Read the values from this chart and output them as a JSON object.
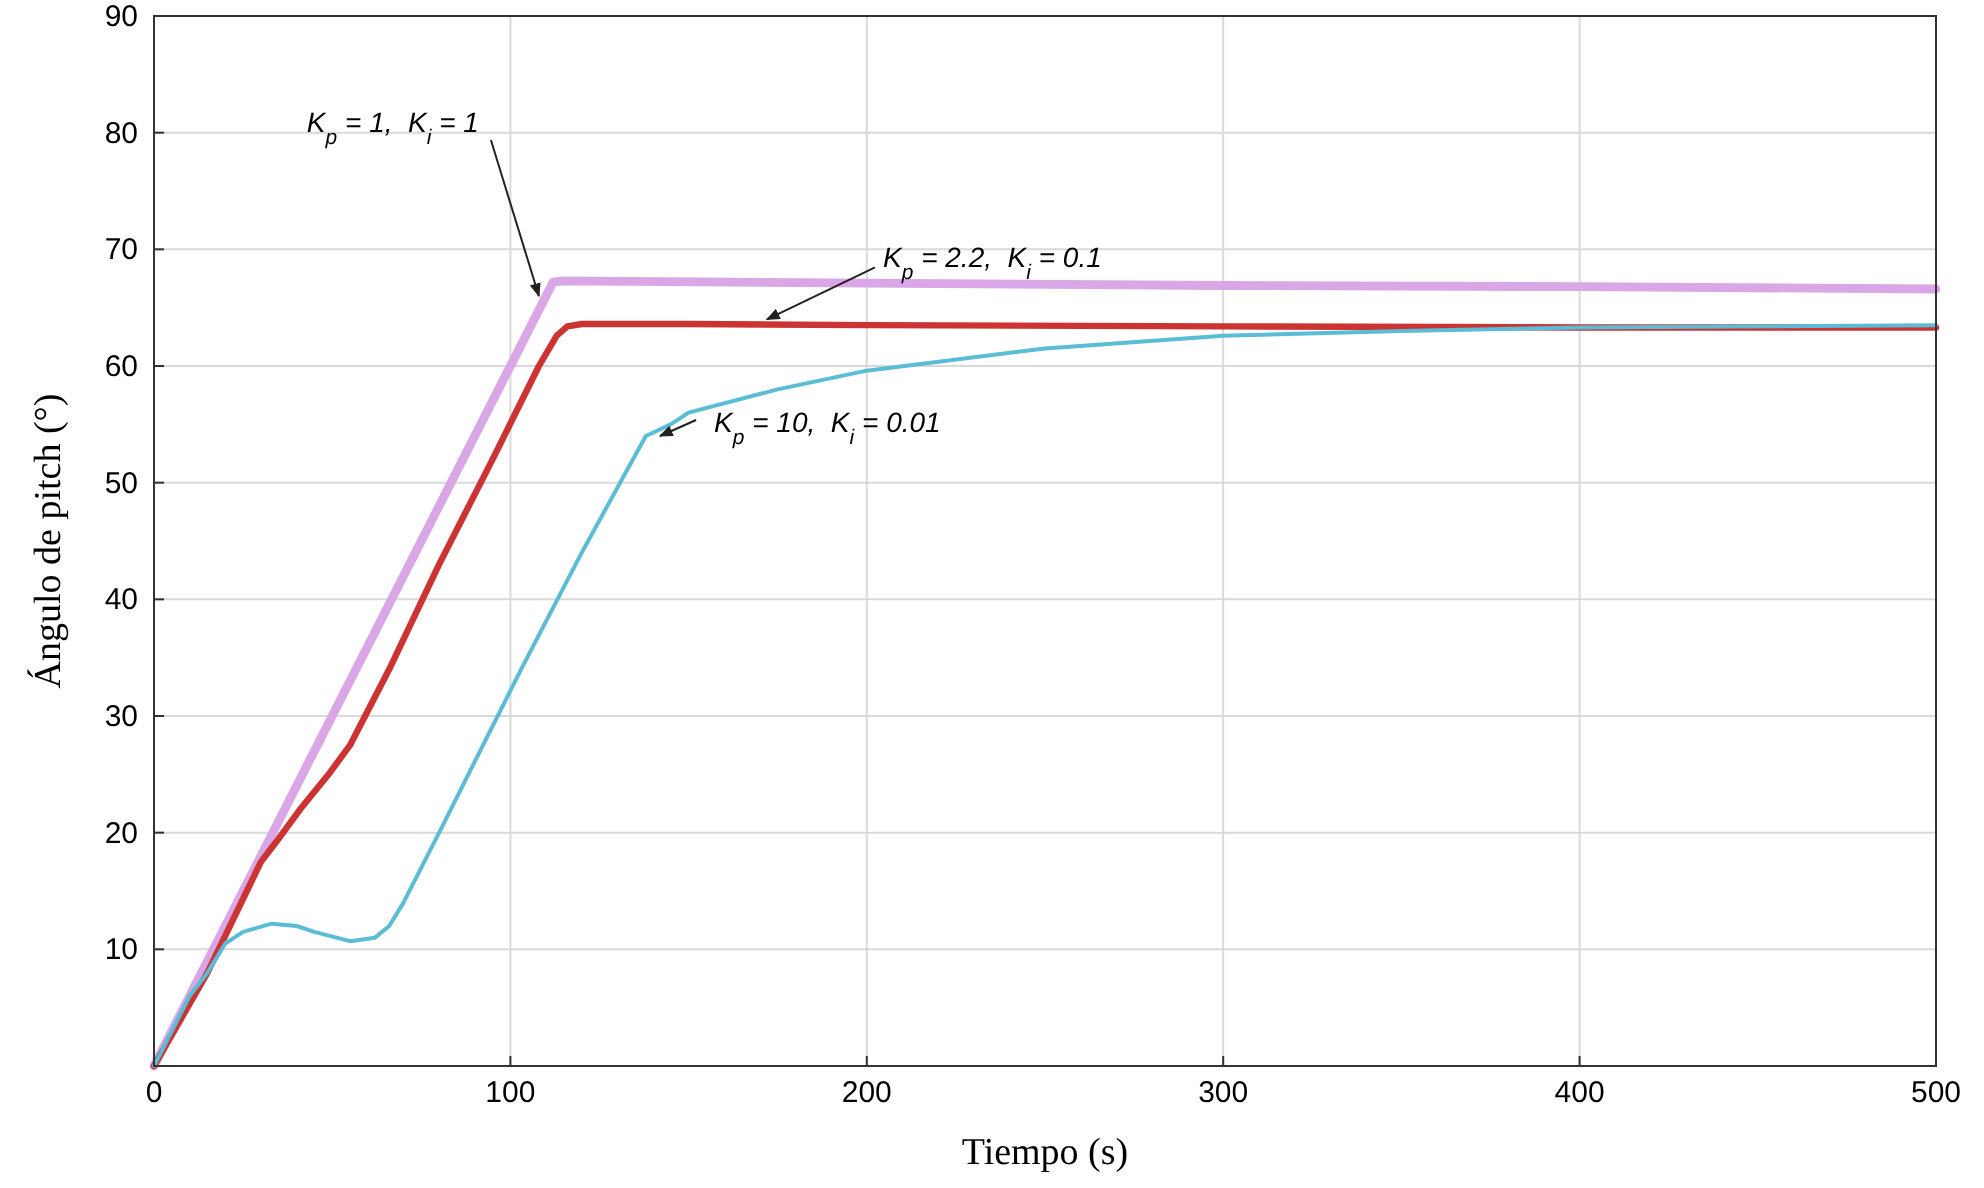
{
  "chart_data": {
    "type": "line",
    "xlabel": "Tiempo  (s)",
    "ylabel": "Ángulo de pitch  (°)",
    "xlim": [
      0,
      500
    ],
    "ylim": [
      0,
      90
    ],
    "xticks": [
      0,
      100,
      200,
      300,
      400,
      500
    ],
    "yticks": [
      10,
      20,
      30,
      40,
      50,
      60,
      70,
      80,
      90
    ],
    "grid": true,
    "marker": "none",
    "line_style": "solid",
    "series": [
      {
        "color": "#d9a6e6",
        "x": [
          0,
          30,
          60,
          90,
          112,
          115,
          200,
          300,
          400,
          500
        ],
        "values": [
          0,
          18,
          36,
          54,
          67.2,
          67.3,
          67.1,
          66.9,
          66.8,
          66.6
        ]
      },
      {
        "color": "#cc3333",
        "x": [
          0,
          15,
          30,
          35,
          41,
          49,
          55,
          66,
          80,
          95,
          108,
          113,
          116,
          120,
          150,
          200,
          300,
          400,
          500
        ],
        "values": [
          0,
          8,
          17.5,
          19.5,
          22,
          25,
          27.5,
          34,
          43,
          52,
          60,
          62.6,
          63.4,
          63.6,
          63.6,
          63.5,
          63.4,
          63.3,
          63.3
        ]
      },
      {
        "color": "#5bbcd6",
        "x": [
          0,
          10,
          15,
          20,
          25,
          33,
          40,
          45,
          55,
          62,
          66,
          70,
          80,
          103,
          120,
          138,
          145,
          150,
          175,
          200,
          250,
          300,
          350,
          400,
          500
        ],
        "values": [
          0,
          6,
          8,
          10.5,
          11.5,
          12.2,
          12,
          11.5,
          10.7,
          11,
          12,
          14,
          20,
          34,
          44,
          54,
          55,
          56,
          58,
          59.6,
          61.5,
          62.6,
          63,
          63.3,
          63.5
        ]
      }
    ],
    "annotations": [
      {
        "text": "K$_{p}$ = 1,  K$_{i}$ = 1",
        "x": 108,
        "y": 66
      },
      {
        "text": "K$_{p}$ = 2.2,  K$_{i}$ = 0.1",
        "x": 172,
        "y": 64
      },
      {
        "text": "K$_{p}$ = 10,  K$_{i}$ = 0.01",
        "x": 142,
        "y": 54
      }
    ]
  }
}
